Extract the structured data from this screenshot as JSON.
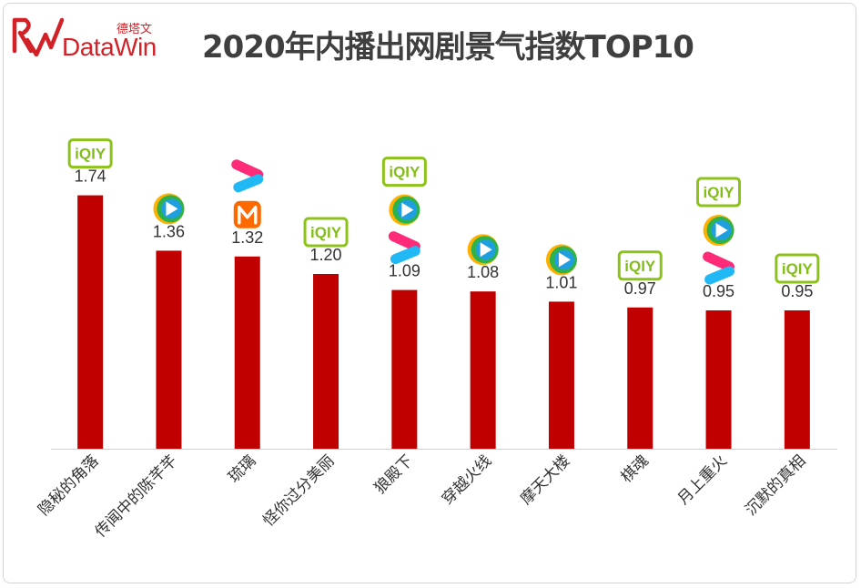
{
  "header": {
    "title": "2020年内播出网剧景气指数TOP10",
    "logo_cn": "德塔文",
    "logo_en": "DataWin"
  },
  "colors": {
    "bar": "#c00000",
    "axis": "#cfcfcf",
    "iqiyi": "#8cc21a",
    "tencent": "#1f9fe0",
    "youku": "#ff2a78",
    "mango": "#ff6a00"
  },
  "platform_labels": {
    "iqiyi": "iQIY"
  },
  "chart_data": {
    "type": "bar",
    "title": "2020年内播出网剧景气指数TOP10",
    "xlabel": "",
    "ylabel": "",
    "ylim": [
      0,
      1.8
    ],
    "grid": false,
    "categories": [
      "隐秘的角落",
      "传闻中的陈芊芊",
      "琉璃",
      "怪你过分美丽",
      "狼殿下",
      "穿越火线",
      "摩天大楼",
      "棋魂",
      "月上重火",
      "沉默的真相"
    ],
    "values": [
      1.74,
      1.36,
      1.32,
      1.2,
      1.09,
      1.08,
      1.01,
      0.97,
      0.95,
      0.95
    ],
    "labels": [
      "1.74",
      "1.36",
      "1.32",
      "1.20",
      "1.09",
      "1.08",
      "1.01",
      "0.97",
      "0.95",
      "0.95"
    ],
    "platforms": [
      [
        "iqiyi"
      ],
      [
        "tencent"
      ],
      [
        "youku",
        "mango"
      ],
      [
        "iqiyi"
      ],
      [
        "iqiyi",
        "tencent",
        "youku"
      ],
      [
        "tencent"
      ],
      [
        "tencent"
      ],
      [
        "iqiyi"
      ],
      [
        "iqiyi",
        "tencent",
        "youku"
      ],
      [
        "iqiyi"
      ]
    ]
  }
}
